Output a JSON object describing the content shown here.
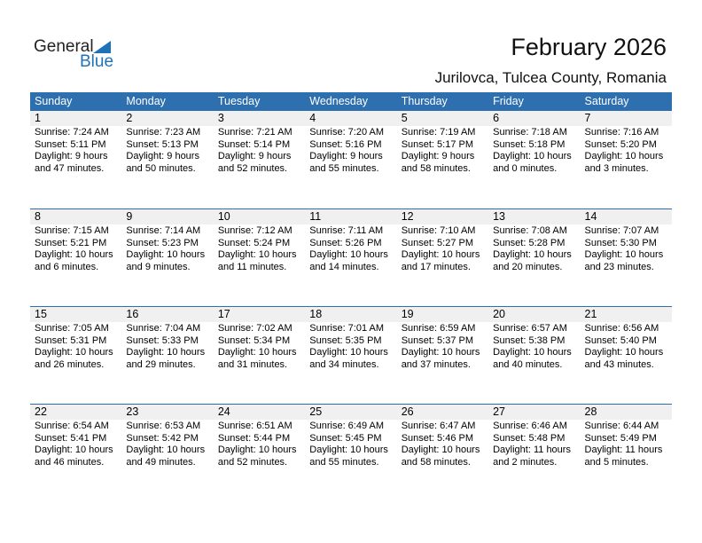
{
  "logo": {
    "word1": "General",
    "word2": "Blue"
  },
  "title": "February 2026",
  "location": "Jurilovca, Tulcea County, Romania",
  "colors": {
    "header": "#2e6fb0",
    "date_strip": "#f0f0f0",
    "logo_blue": "#1e72b8"
  },
  "weekdays": [
    "Sunday",
    "Monday",
    "Tuesday",
    "Wednesday",
    "Thursday",
    "Friday",
    "Saturday"
  ],
  "weeks": [
    [
      {
        "day": "1",
        "sunrise": "Sunrise: 7:24 AM",
        "sunset": "Sunset: 5:11 PM",
        "daylight": "Daylight: 9 hours",
        "minutes": "and 47 minutes."
      },
      {
        "day": "2",
        "sunrise": "Sunrise: 7:23 AM",
        "sunset": "Sunset: 5:13 PM",
        "daylight": "Daylight: 9 hours",
        "minutes": "and 50 minutes."
      },
      {
        "day": "3",
        "sunrise": "Sunrise: 7:21 AM",
        "sunset": "Sunset: 5:14 PM",
        "daylight": "Daylight: 9 hours",
        "minutes": "and 52 minutes."
      },
      {
        "day": "4",
        "sunrise": "Sunrise: 7:20 AM",
        "sunset": "Sunset: 5:16 PM",
        "daylight": "Daylight: 9 hours",
        "minutes": "and 55 minutes."
      },
      {
        "day": "5",
        "sunrise": "Sunrise: 7:19 AM",
        "sunset": "Sunset: 5:17 PM",
        "daylight": "Daylight: 9 hours",
        "minutes": "and 58 minutes."
      },
      {
        "day": "6",
        "sunrise": "Sunrise: 7:18 AM",
        "sunset": "Sunset: 5:18 PM",
        "daylight": "Daylight: 10 hours",
        "minutes": "and 0 minutes."
      },
      {
        "day": "7",
        "sunrise": "Sunrise: 7:16 AM",
        "sunset": "Sunset: 5:20 PM",
        "daylight": "Daylight: 10 hours",
        "minutes": "and 3 minutes."
      }
    ],
    [
      {
        "day": "8",
        "sunrise": "Sunrise: 7:15 AM",
        "sunset": "Sunset: 5:21 PM",
        "daylight": "Daylight: 10 hours",
        "minutes": "and 6 minutes."
      },
      {
        "day": "9",
        "sunrise": "Sunrise: 7:14 AM",
        "sunset": "Sunset: 5:23 PM",
        "daylight": "Daylight: 10 hours",
        "minutes": "and 9 minutes."
      },
      {
        "day": "10",
        "sunrise": "Sunrise: 7:12 AM",
        "sunset": "Sunset: 5:24 PM",
        "daylight": "Daylight: 10 hours",
        "minutes": "and 11 minutes."
      },
      {
        "day": "11",
        "sunrise": "Sunrise: 7:11 AM",
        "sunset": "Sunset: 5:26 PM",
        "daylight": "Daylight: 10 hours",
        "minutes": "and 14 minutes."
      },
      {
        "day": "12",
        "sunrise": "Sunrise: 7:10 AM",
        "sunset": "Sunset: 5:27 PM",
        "daylight": "Daylight: 10 hours",
        "minutes": "and 17 minutes."
      },
      {
        "day": "13",
        "sunrise": "Sunrise: 7:08 AM",
        "sunset": "Sunset: 5:28 PM",
        "daylight": "Daylight: 10 hours",
        "minutes": "and 20 minutes."
      },
      {
        "day": "14",
        "sunrise": "Sunrise: 7:07 AM",
        "sunset": "Sunset: 5:30 PM",
        "daylight": "Daylight: 10 hours",
        "minutes": "and 23 minutes."
      }
    ],
    [
      {
        "day": "15",
        "sunrise": "Sunrise: 7:05 AM",
        "sunset": "Sunset: 5:31 PM",
        "daylight": "Daylight: 10 hours",
        "minutes": "and 26 minutes."
      },
      {
        "day": "16",
        "sunrise": "Sunrise: 7:04 AM",
        "sunset": "Sunset: 5:33 PM",
        "daylight": "Daylight: 10 hours",
        "minutes": "and 29 minutes."
      },
      {
        "day": "17",
        "sunrise": "Sunrise: 7:02 AM",
        "sunset": "Sunset: 5:34 PM",
        "daylight": "Daylight: 10 hours",
        "minutes": "and 31 minutes."
      },
      {
        "day": "18",
        "sunrise": "Sunrise: 7:01 AM",
        "sunset": "Sunset: 5:35 PM",
        "daylight": "Daylight: 10 hours",
        "minutes": "and 34 minutes."
      },
      {
        "day": "19",
        "sunrise": "Sunrise: 6:59 AM",
        "sunset": "Sunset: 5:37 PM",
        "daylight": "Daylight: 10 hours",
        "minutes": "and 37 minutes."
      },
      {
        "day": "20",
        "sunrise": "Sunrise: 6:57 AM",
        "sunset": "Sunset: 5:38 PM",
        "daylight": "Daylight: 10 hours",
        "minutes": "and 40 minutes."
      },
      {
        "day": "21",
        "sunrise": "Sunrise: 6:56 AM",
        "sunset": "Sunset: 5:40 PM",
        "daylight": "Daylight: 10 hours",
        "minutes": "and 43 minutes."
      }
    ],
    [
      {
        "day": "22",
        "sunrise": "Sunrise: 6:54 AM",
        "sunset": "Sunset: 5:41 PM",
        "daylight": "Daylight: 10 hours",
        "minutes": "and 46 minutes."
      },
      {
        "day": "23",
        "sunrise": "Sunrise: 6:53 AM",
        "sunset": "Sunset: 5:42 PM",
        "daylight": "Daylight: 10 hours",
        "minutes": "and 49 minutes."
      },
      {
        "day": "24",
        "sunrise": "Sunrise: 6:51 AM",
        "sunset": "Sunset: 5:44 PM",
        "daylight": "Daylight: 10 hours",
        "minutes": "and 52 minutes."
      },
      {
        "day": "25",
        "sunrise": "Sunrise: 6:49 AM",
        "sunset": "Sunset: 5:45 PM",
        "daylight": "Daylight: 10 hours",
        "minutes": "and 55 minutes."
      },
      {
        "day": "26",
        "sunrise": "Sunrise: 6:47 AM",
        "sunset": "Sunset: 5:46 PM",
        "daylight": "Daylight: 10 hours",
        "minutes": "and 58 minutes."
      },
      {
        "day": "27",
        "sunrise": "Sunrise: 6:46 AM",
        "sunset": "Sunset: 5:48 PM",
        "daylight": "Daylight: 11 hours",
        "minutes": "and 2 minutes."
      },
      {
        "day": "28",
        "sunrise": "Sunrise: 6:44 AM",
        "sunset": "Sunset: 5:49 PM",
        "daylight": "Daylight: 11 hours",
        "minutes": "and 5 minutes."
      }
    ]
  ]
}
